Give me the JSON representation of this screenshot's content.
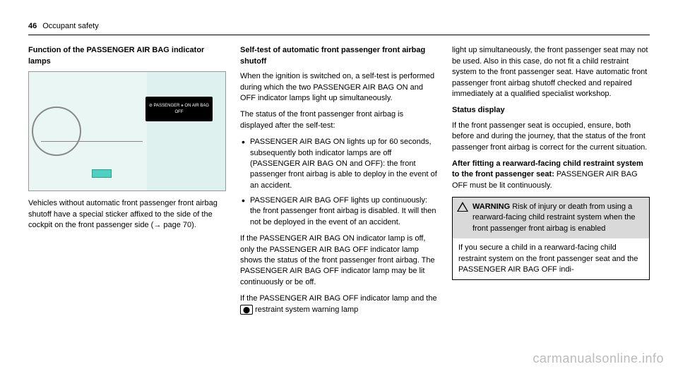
{
  "header": {
    "page_num": "46",
    "section": "Occupant safety"
  },
  "col1": {
    "heading": "Function of the PASSENGER AIR BAG indicator lamps",
    "panel_text": "⊘ PASSENGER ⚹\nON   AIR BAG   OFF",
    "caption": "Vehicles without automatic front passenger front airbag shutoff have a special sticker affixed to the side of the cockpit on the front passenger side (→ page 70)."
  },
  "col2": {
    "heading": "Self-test of automatic front passenger front airbag shutoff",
    "p1": "When the ignition is switched on, a self-test is performed during which the two PASSENGER AIR BAG ON and OFF indicator lamps light up simultaneously.",
    "p2": "The status of the front passenger front airbag is displayed after the self-test:",
    "li1": "PASSENGER AIR BAG ON lights up for 60 seconds, subsequently both indicator lamps are off (PASSENGER AIR BAG ON and OFF): the front passenger front airbag is able to deploy in the event of an accident.",
    "li2": "PASSENGER AIR BAG OFF lights up continuously: the front passenger front airbag is disabled. It will then not be deployed in the event of an accident.",
    "p3": "If the PASSENGER AIR BAG ON indicator lamp is off, only the PASSENGER AIR BAG OFF indicator lamp shows the status of the front passenger front airbag. The PASSENGER AIR BAG OFF indicator lamp may be lit continuously or be off.",
    "p4a": "If the PASSENGER AIR BAG OFF indicator lamp and the ",
    "p4b": " restraint system warning lamp",
    "restraint_icon": "⬤"
  },
  "col3": {
    "p1": "light up simultaneously, the front passenger seat may not be used. Also in this case, do not fit a child restraint system to the front passenger seat. Have automatic front passenger front airbag shutoff checked and repaired immediately at a qualified specialist workshop.",
    "h2": "Status display",
    "p2": "If the front passenger seat is occupied, ensure, both before and during the journey, that the status of the front passenger front airbag is correct for the current situation.",
    "h3": "After fitting a rearward-facing child restraint system to the front passenger seat:",
    "p3": "PASSENGER AIR BAG OFF must be lit continuously.",
    "warn_label": "WARNING",
    "warn_head": " Risk of injury or death from using a rearward-facing child restraint system when the front passenger front airbag is enabled",
    "warn_body": "If you secure a child in a rearward-facing child restraint system on the front passenger seat and the PASSENGER AIR BAG OFF indi-"
  },
  "watermark": "carmanualsonline.info"
}
